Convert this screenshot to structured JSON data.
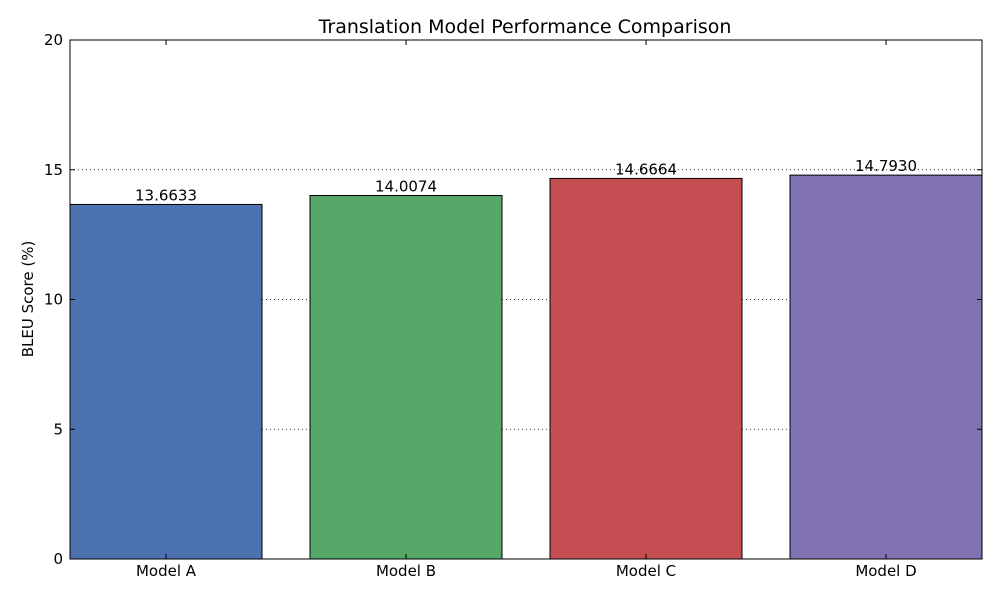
{
  "chart_data": {
    "type": "bar",
    "title": "Translation Model Performance Comparison",
    "xlabel": "",
    "ylabel": "BLEU Score (%)",
    "categories": [
      "Model A",
      "Model B",
      "Model C",
      "Model D"
    ],
    "values": [
      13.6633,
      14.0074,
      14.6664,
      14.793
    ],
    "value_labels": [
      "13.6633",
      "14.0074",
      "14.6664",
      "14.7930"
    ],
    "colors": [
      "#4c72b0",
      "#55a868",
      "#c44e52",
      "#8172b2"
    ],
    "ylim": [
      0,
      20
    ],
    "yticks": [
      0,
      5,
      10,
      15,
      20
    ],
    "grid": "y-dotted"
  }
}
